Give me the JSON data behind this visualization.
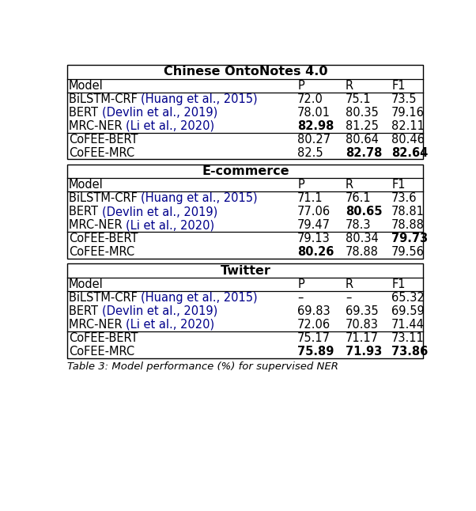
{
  "title_color": "#000000",
  "cite_color": "#00008B",
  "bg_color": "#FFFFFF",
  "sections": [
    {
      "header": "Chinese OntoNotes 4.0",
      "rows": [
        {
          "model_plain": "BiLSTM-CRF ",
          "model_cite": "(Huang et al., 2015)",
          "p": "72.0",
          "r": "75.1",
          "f1": "73.5",
          "bold_p": false,
          "bold_r": false,
          "bold_f1": false,
          "sep": false
        },
        {
          "model_plain": "BERT ",
          "model_cite": "(Devlin et al., 2019)",
          "p": "78.01",
          "r": "80.35",
          "f1": "79.16",
          "bold_p": false,
          "bold_r": false,
          "bold_f1": false,
          "sep": false
        },
        {
          "model_plain": "MRC-NER ",
          "model_cite": "(Li et al., 2020)",
          "p": "82.98",
          "r": "81.25",
          "f1": "82.11",
          "bold_p": true,
          "bold_r": false,
          "bold_f1": false,
          "sep": false
        },
        {
          "model_plain": "CoFEE-BERT",
          "model_cite": "",
          "p": "80.27",
          "r": "80.64",
          "f1": "80.46",
          "bold_p": false,
          "bold_r": false,
          "bold_f1": false,
          "sep": true
        },
        {
          "model_plain": "CoFEE-MRC",
          "model_cite": "",
          "p": "82.5",
          "r": "82.78",
          "f1": "82.64",
          "bold_p": false,
          "bold_r": true,
          "bold_f1": true,
          "sep": false
        }
      ]
    },
    {
      "header": "E-commerce",
      "rows": [
        {
          "model_plain": "BiLSTM-CRF ",
          "model_cite": "(Huang et al., 2015)",
          "p": "71.1",
          "r": "76.1",
          "f1": "73.6",
          "bold_p": false,
          "bold_r": false,
          "bold_f1": false,
          "sep": false
        },
        {
          "model_plain": "BERT ",
          "model_cite": "(Devlin et al., 2019)",
          "p": "77.06",
          "r": "80.65",
          "f1": "78.81",
          "bold_p": false,
          "bold_r": true,
          "bold_f1": false,
          "sep": false
        },
        {
          "model_plain": "MRC-NER ",
          "model_cite": "(Li et al., 2020)",
          "p": "79.47",
          "r": "78.3",
          "f1": "78.88",
          "bold_p": false,
          "bold_r": false,
          "bold_f1": false,
          "sep": false
        },
        {
          "model_plain": "CoFEE-BERT",
          "model_cite": "",
          "p": "79.13",
          "r": "80.34",
          "f1": "79.73",
          "bold_p": false,
          "bold_r": false,
          "bold_f1": true,
          "sep": true
        },
        {
          "model_plain": "CoFEE-MRC",
          "model_cite": "",
          "p": "80.26",
          "r": "78.88",
          "f1": "79.56",
          "bold_p": true,
          "bold_r": false,
          "bold_f1": false,
          "sep": false
        }
      ]
    },
    {
      "header": "Twitter",
      "rows": [
        {
          "model_plain": "BiLSTM-CRF ",
          "model_cite": "(Huang et al., 2015)",
          "p": "–",
          "r": "–",
          "f1": "65.32",
          "bold_p": false,
          "bold_r": false,
          "bold_f1": false,
          "sep": false
        },
        {
          "model_plain": "BERT ",
          "model_cite": "(Devlin et al., 2019)",
          "p": "69.83",
          "r": "69.35",
          "f1": "69.59",
          "bold_p": false,
          "bold_r": false,
          "bold_f1": false,
          "sep": false
        },
        {
          "model_plain": "MRC-NER ",
          "model_cite": "(Li et al., 2020)",
          "p": "72.06",
          "r": "70.83",
          "f1": "71.44",
          "bold_p": false,
          "bold_r": false,
          "bold_f1": false,
          "sep": false
        },
        {
          "model_plain": "CoFEE-BERT",
          "model_cite": "",
          "p": "75.17",
          "r": "71.17",
          "f1": "73.11",
          "bold_p": false,
          "bold_r": false,
          "bold_f1": false,
          "sep": true
        },
        {
          "model_plain": "CoFEE-MRC",
          "model_cite": "",
          "p": "75.89",
          "r": "71.93",
          "f1": "73.86",
          "bold_p": true,
          "bold_r": true,
          "bold_f1": true,
          "sep": false
        }
      ]
    }
  ],
  "caption": "Table 3: Model performance (%) for supervised NER",
  "figsize": [
    6.02,
    6.46
  ],
  "dpi": 100
}
